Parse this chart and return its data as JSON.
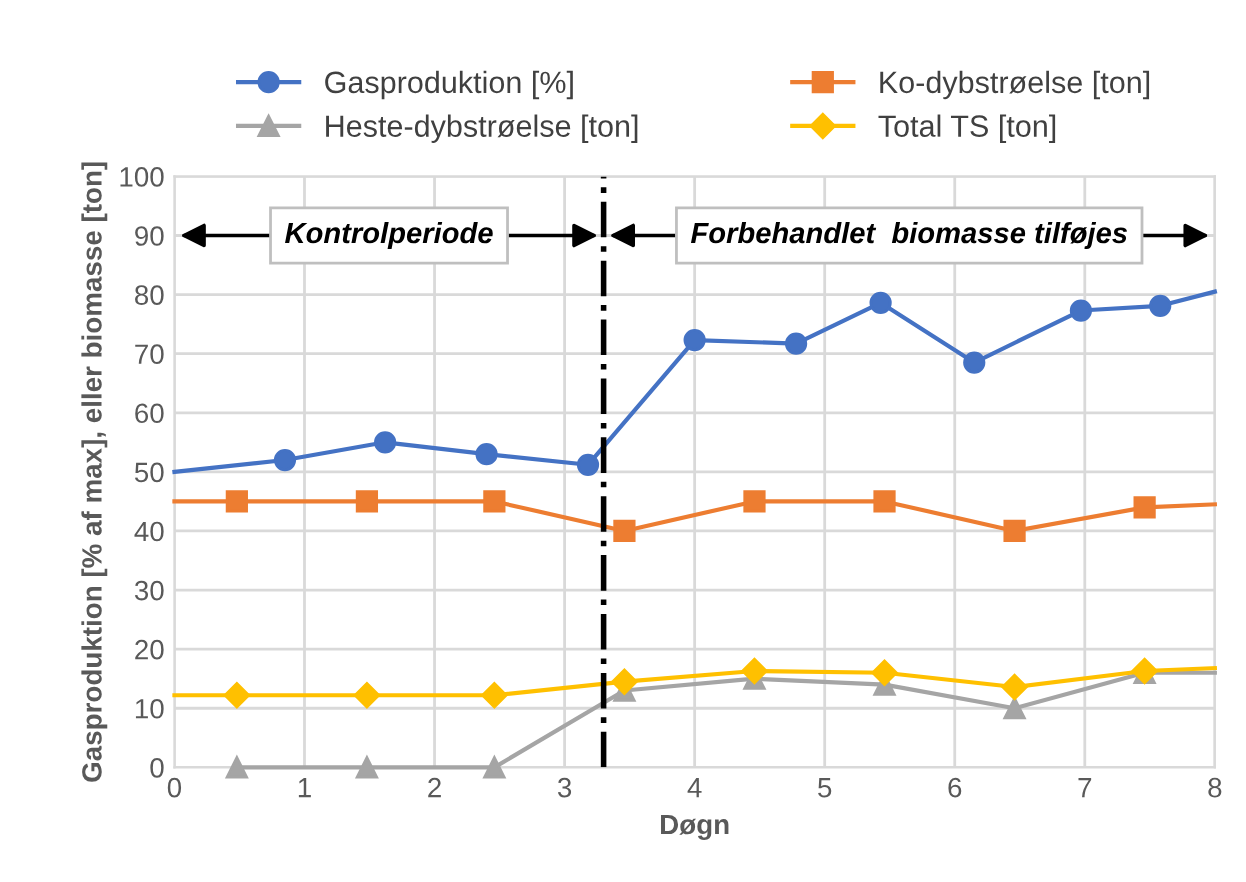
{
  "chart_data": {
    "type": "line",
    "xlabel": "Døgn",
    "ylabel": "Gasproduktion [% af max], eller biomasse [ton]",
    "xlim": [
      0,
      8
    ],
    "ylim": [
      0,
      100
    ],
    "xticks": [
      0,
      1,
      2,
      3,
      4,
      5,
      6,
      7,
      8
    ],
    "yticks": [
      0,
      10,
      20,
      30,
      40,
      50,
      60,
      70,
      80,
      90,
      100
    ],
    "grid": true,
    "legend": "top",
    "series": [
      {
        "name": "Gasproduktion [%]",
        "color": "#4472c4",
        "marker": "circle",
        "x": [
          0,
          0.85,
          1.62,
          2.4,
          3.18,
          4.0,
          4.78,
          5.43,
          6.15,
          6.97,
          7.58,
          8
        ],
        "values": [
          50,
          52,
          55,
          53,
          51.2,
          72.3,
          71.7,
          78.6,
          68.5,
          77.3,
          78.1,
          80.5
        ]
      },
      {
        "name": "Ko-dybstrøelse [ton]",
        "color": "#ed7d31",
        "marker": "square",
        "x": [
          0,
          0.48,
          1.48,
          2.46,
          3.46,
          4.46,
          5.46,
          6.46,
          7.46,
          8
        ],
        "values": [
          45,
          45,
          45,
          45,
          40,
          45,
          45,
          40,
          44,
          44.5
        ]
      },
      {
        "name": "Heste-dybstrøelse [ton]",
        "color": "#a5a5a5",
        "marker": "triangle",
        "x": [
          0.48,
          1.48,
          2.46,
          3.46,
          4.46,
          5.46,
          6.46,
          7.46,
          8
        ],
        "values": [
          0,
          0,
          0,
          13,
          15,
          14,
          10,
          16,
          16
        ]
      },
      {
        "name": "Total TS [ton]",
        "color": "#ffc000",
        "marker": "diamond",
        "x": [
          0,
          0.48,
          1.48,
          2.46,
          3.46,
          4.46,
          5.46,
          6.46,
          7.46,
          8
        ],
        "values": [
          12.2,
          12.2,
          12.2,
          12.2,
          14.5,
          16.3,
          16,
          13.6,
          16.3,
          16.8
        ]
      }
    ],
    "ref_lines": [
      {
        "axis": "x",
        "value": 3.3,
        "line_style": "dashdot",
        "color": "#000000"
      }
    ],
    "annotations": [
      "Kontrolperiode",
      "Forbehandlet  biomasse tilføjes"
    ]
  }
}
